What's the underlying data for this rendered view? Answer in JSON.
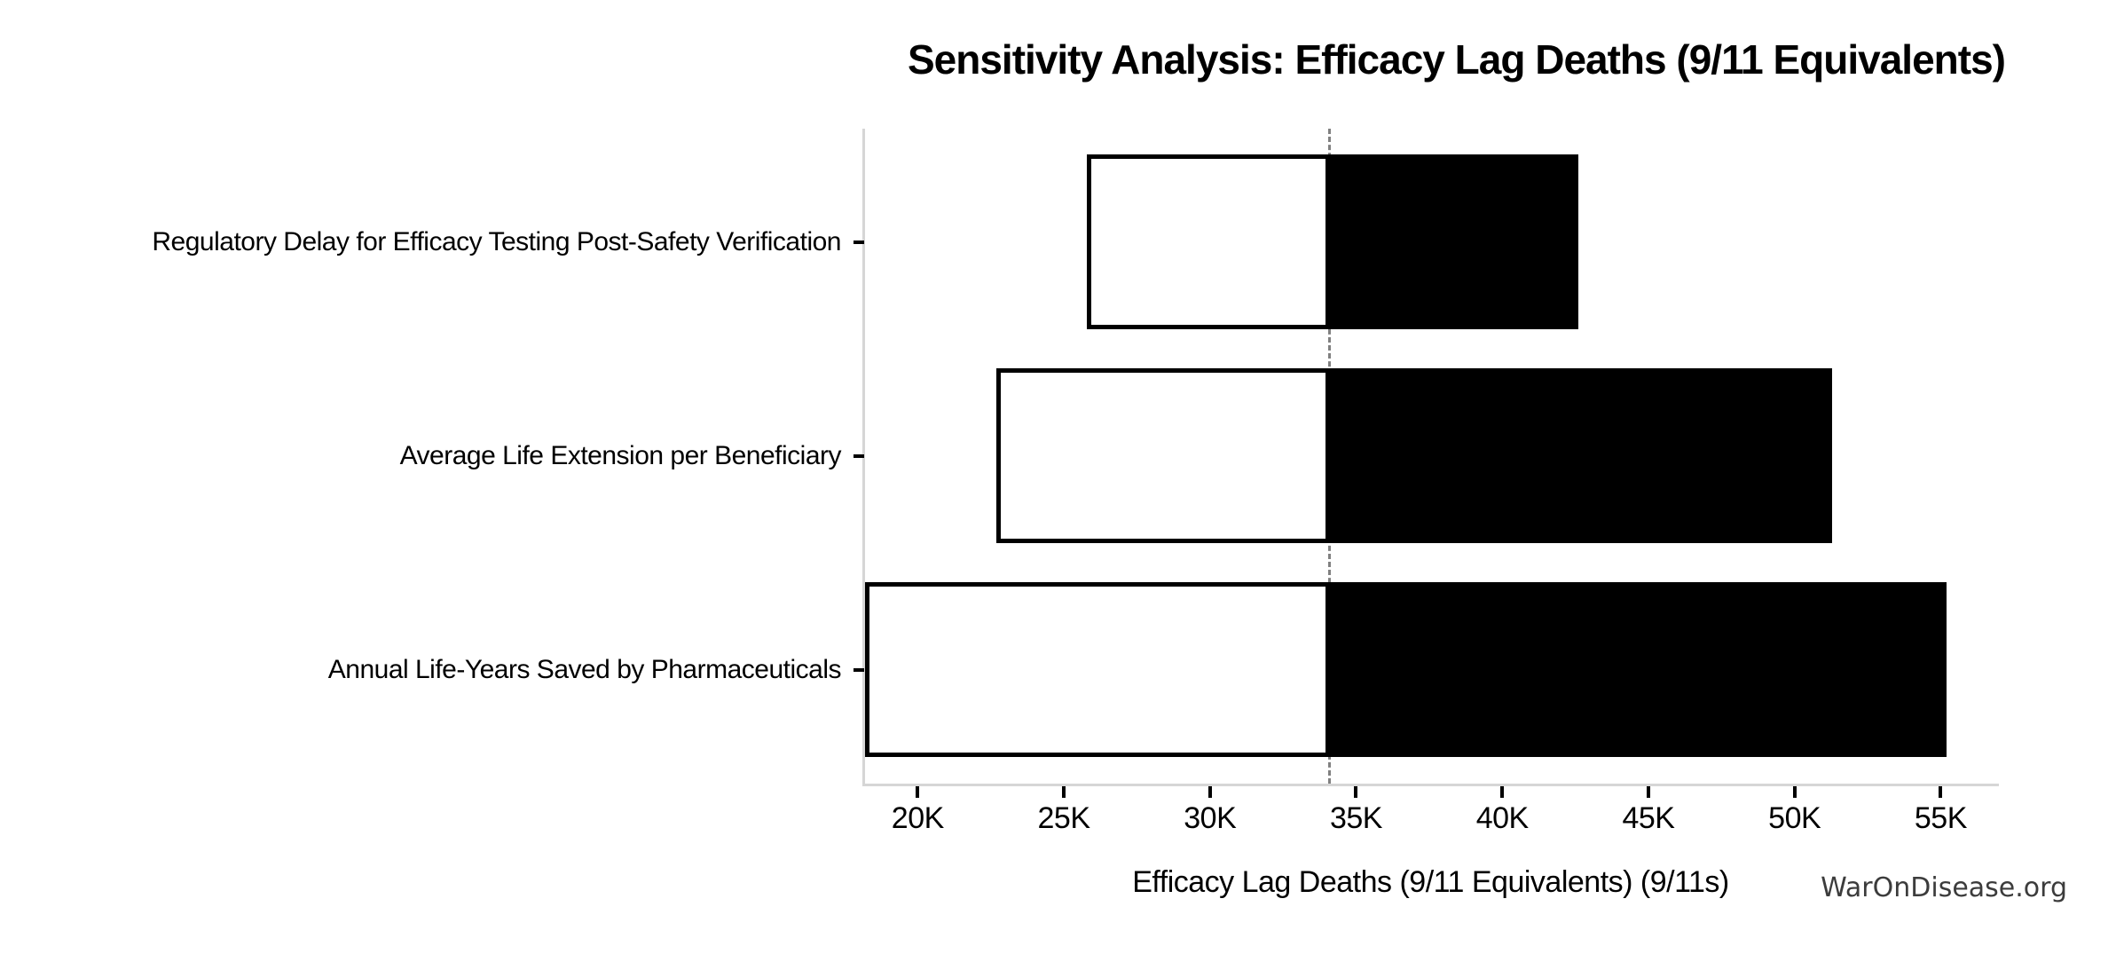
{
  "figure": {
    "watermark": "WarOnDisease.org"
  },
  "chart_data": {
    "type": "bar",
    "variant": "tornado-sensitivity",
    "orientation": "horizontal",
    "title": "Sensitivity Analysis: Efficacy Lag Deaths (9/11 Equivalents)",
    "xlabel": "Efficacy Lag Deaths (9/11 Equivalents) (9/11s)",
    "categories": [
      "Regulatory Delay for Efficacy Testing Post-Safety Verification",
      "Average Life Extension per Beneficiary",
      "Annual Life-Years Saved by Pharmaceuticals"
    ],
    "rows": [
      {
        "label": "Regulatory Delay for Efficacy Testing Post-Safety Verification",
        "low": 25800,
        "high": 42600
      },
      {
        "label": "Average Life Extension per Beneficiary",
        "low": 22700,
        "high": 51300
      },
      {
        "label": "Annual Life-Years Saved by Pharmaceuticals",
        "low": 18200,
        "high": 55200,
        "low_clipped_at_axis": true
      }
    ],
    "baseline": 34100,
    "xlim": [
      18200,
      56900
    ],
    "xticks": [
      {
        "value": 20000,
        "label": "20K"
      },
      {
        "value": 25000,
        "label": "25K"
      },
      {
        "value": 30000,
        "label": "30K"
      },
      {
        "value": 35000,
        "label": "35K"
      },
      {
        "value": 40000,
        "label": "40K"
      },
      {
        "value": 45000,
        "label": "45K"
      },
      {
        "value": 50000,
        "label": "50K"
      },
      {
        "value": 55000,
        "label": "55K"
      }
    ],
    "grid": false,
    "legend": "none",
    "colors": {
      "low_bar_fill": "#ffffff",
      "low_bar_edge": "#000000",
      "high_bar_fill": "#000000",
      "baseline_line": "#808080",
      "spine": "#d6d6d6",
      "tick_mark": "#000000",
      "text": "#000000",
      "watermark": "#3c3c3c"
    }
  }
}
